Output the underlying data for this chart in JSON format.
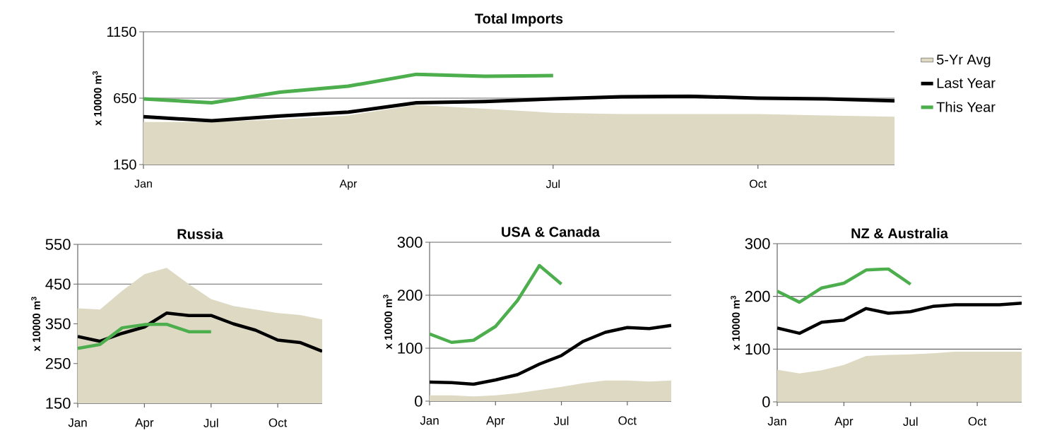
{
  "chart_data": [
    {
      "type": "line",
      "title": "Total Imports",
      "ylabel": "x 10000 m$^{3}$",
      "categories": [
        "Jan",
        null,
        null,
        "Apr",
        null,
        null,
        "Jul",
        null,
        null,
        "Oct",
        null,
        null
      ],
      "ylim": [
        150,
        1150
      ],
      "yticks": [
        150,
        650,
        1150
      ],
      "grid": "y",
      "legend": "right",
      "series": [
        {
          "name": "5-Yr Avg",
          "type": "area",
          "color": "#ddd9c3",
          "values": [
            470,
            470,
            490,
            520,
            600,
            570,
            540,
            530,
            530,
            530,
            520,
            510
          ]
        },
        {
          "name": "Last Year",
          "color": "#000000",
          "values": [
            510,
            480,
            515,
            545,
            615,
            625,
            645,
            660,
            665,
            650,
            645,
            630
          ]
        },
        {
          "name": "This Year",
          "color": "#4cae4c",
          "values": [
            645,
            615,
            695,
            740,
            830,
            815,
            820,
            null,
            null,
            null,
            null,
            null
          ]
        }
      ]
    },
    {
      "type": "line",
      "title": "Russia",
      "ylabel": "x 10000 m$^{3}$",
      "categories": [
        "Jan",
        null,
        null,
        "Apr",
        null,
        null,
        "Jul",
        null,
        null,
        "Oct",
        null,
        null
      ],
      "ylim": [
        150,
        550
      ],
      "yticks": [
        150,
        250,
        350,
        450,
        550
      ],
      "grid": "y",
      "series": [
        {
          "type": "area",
          "color": "#ddd9c3",
          "values": [
            389,
            386,
            433,
            475,
            491,
            450,
            412,
            395,
            386,
            377,
            372,
            361
          ]
        },
        {
          "color": "#000000",
          "values": [
            318,
            306,
            326,
            342,
            377,
            371,
            371,
            350,
            334,
            309,
            303,
            281
          ]
        },
        {
          "color": "#4cae4c",
          "values": [
            288,
            298,
            340,
            348,
            349,
            330,
            330,
            null,
            null,
            null,
            null,
            null
          ]
        }
      ]
    },
    {
      "type": "line",
      "title": "USA & Canada",
      "ylabel": "x 10000 m$^{3}$",
      "categories": [
        "Jan",
        null,
        null,
        "Apr",
        null,
        null,
        "Jul",
        null,
        null,
        "Oct",
        null,
        null
      ],
      "ylim": [
        0,
        300
      ],
      "yticks": [
        0,
        100,
        200,
        300
      ],
      "grid": "y",
      "series": [
        {
          "type": "area",
          "color": "#ddd9c3",
          "values": [
            11,
            11,
            9,
            11,
            15,
            21,
            27,
            34,
            39,
            39,
            37,
            39
          ]
        },
        {
          "color": "#000000",
          "values": [
            36,
            35,
            32,
            40,
            50,
            70,
            86,
            113,
            130,
            139,
            137,
            143
          ]
        },
        {
          "color": "#4cae4c",
          "values": [
            127,
            111,
            115,
            141,
            190,
            256,
            221,
            null,
            null,
            null,
            null,
            null
          ]
        }
      ]
    },
    {
      "type": "line",
      "title": "NZ & Australia",
      "ylabel": "x 10000 m$^{3}$",
      "categories": [
        "Jan",
        null,
        null,
        "Apr",
        null,
        null,
        "Jul",
        null,
        null,
        "Oct",
        null,
        null
      ],
      "ylim": [
        0,
        300
      ],
      "yticks": [
        0,
        100,
        200,
        300
      ],
      "grid": "y",
      "series": [
        {
          "type": "area",
          "color": "#ddd9c3",
          "values": [
            61,
            54,
            60,
            70,
            87,
            89,
            90,
            92,
            95,
            95,
            95,
            95
          ]
        },
        {
          "color": "#000000",
          "values": [
            140,
            130,
            151,
            155,
            177,
            168,
            171,
            181,
            184,
            184,
            184,
            187
          ]
        },
        {
          "color": "#4cae4c",
          "values": [
            210,
            189,
            216,
            225,
            250,
            252,
            223,
            null,
            null,
            null,
            null,
            null
          ]
        }
      ]
    }
  ]
}
